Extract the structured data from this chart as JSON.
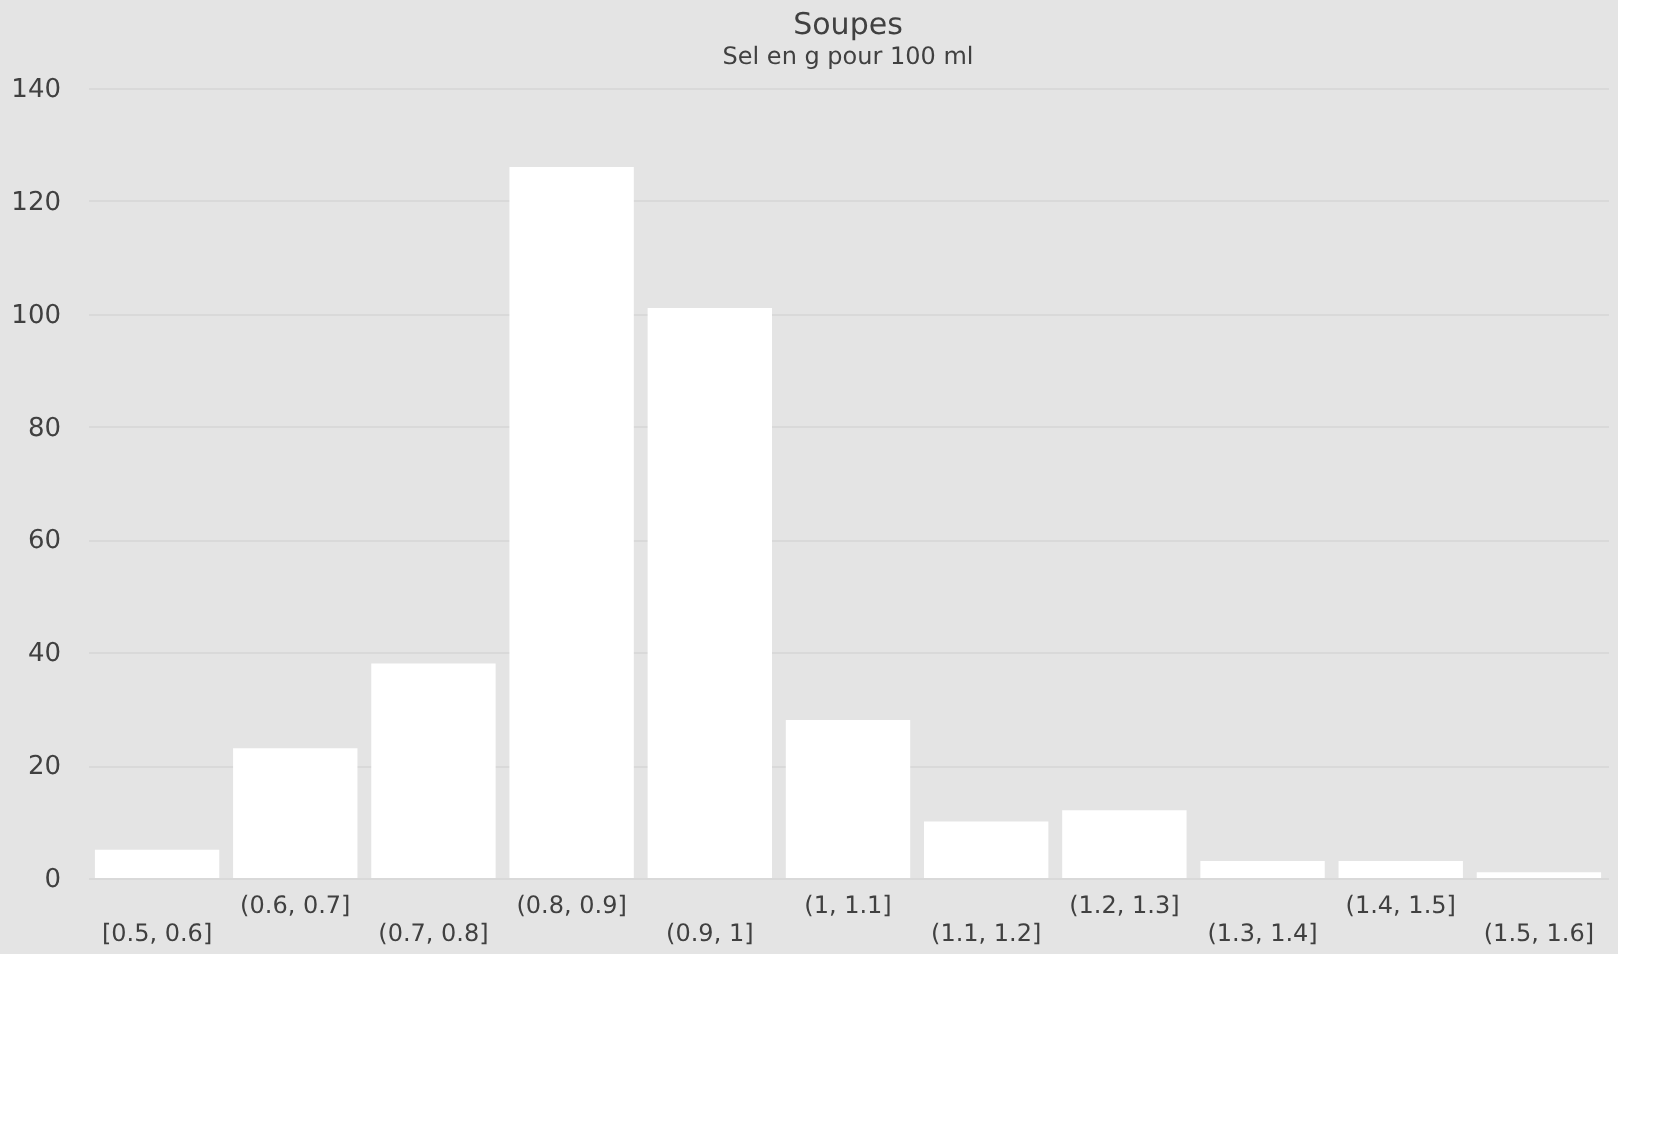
{
  "chart_data": {
    "type": "bar",
    "title": "Soupes",
    "subtitle": "Sel en g pour 100 ml",
    "categories": [
      "[0.5, 0.6]",
      "(0.6, 0.7]",
      "(0.7, 0.8]",
      "(0.8, 0.9]",
      "(0.9, 1]",
      "(1, 1.1]",
      "(1.1, 1.2]",
      "(1.2, 1.3]",
      "(1.3, 1.4]",
      "(1.4, 1.5]",
      "(1.5, 1.6]"
    ],
    "values": [
      5,
      23,
      38,
      126,
      101,
      28,
      10,
      12,
      3,
      3,
      1
    ],
    "color": "#ffffff",
    "ylim": [
      0,
      140
    ],
    "yticks": [
      0,
      20,
      40,
      60,
      80,
      100,
      120,
      140
    ],
    "grid": "y"
  }
}
